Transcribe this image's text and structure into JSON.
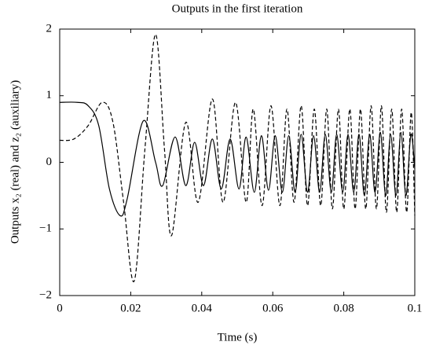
{
  "chart_data": {
    "type": "line",
    "title": "Outputs in the first iteration",
    "x_label": "Time (s)",
    "y_label": "Outputs x₂ (real) and z₂ (auxiliary)",
    "xlim": [
      0,
      0.1
    ],
    "xticks": [
      0,
      0.02,
      0.04,
      0.06,
      0.08,
      0.1
    ],
    "ylim": [
      -2,
      2
    ],
    "yticks": [
      {
        "value": -2,
        "label": "−2"
      },
      {
        "value": -1,
        "label": "−1"
      },
      0,
      1,
      2
    ],
    "series": [
      {
        "color": "#000000",
        "dash": "solid",
        "x": [
          0,
          0.005,
          0.008,
          0.011,
          0.014,
          0.017,
          0.019,
          0.0235,
          0.027,
          0.029,
          0.0325,
          0.0355,
          0.038,
          0.0405,
          0.043,
          0.0455,
          0.048,
          0.0505,
          0.0525,
          0.0548,
          0.0568,
          0.0588,
          0.0607,
          0.0627,
          0.0645,
          0.0663,
          0.068,
          0.0698,
          0.0715,
          0.0732,
          0.0748,
          0.0765,
          0.078,
          0.0797,
          0.0812,
          0.0828,
          0.0843,
          0.0858,
          0.0873,
          0.0888,
          0.0903,
          0.0918,
          0.0932,
          0.0947,
          0.0961,
          0.0975,
          0.0989,
          0.1
        ],
        "values": [
          0.9,
          0.9,
          0.85,
          0.55,
          -0.4,
          -0.8,
          -0.55,
          0.62,
          0.0,
          -0.35,
          0.38,
          -0.35,
          0.3,
          -0.35,
          0.35,
          -0.4,
          0.35,
          -0.4,
          0.38,
          -0.45,
          0.4,
          -0.42,
          0.4,
          -0.45,
          0.4,
          -0.45,
          0.42,
          -0.45,
          0.4,
          -0.45,
          0.42,
          -0.45,
          0.42,
          -0.45,
          0.42,
          -0.45,
          0.42,
          -0.5,
          0.42,
          -0.45,
          0.45,
          -0.5,
          0.42,
          -0.5,
          0.45,
          -0.5,
          0.42,
          -0.1
        ]
      },
      {
        "color": "#000000",
        "dash": "dashed",
        "x": [
          0,
          0.004,
          0.008,
          0.012,
          0.015,
          0.018,
          0.021,
          0.024,
          0.027,
          0.0295,
          0.0315,
          0.0355,
          0.039,
          0.043,
          0.046,
          0.0495,
          0.0525,
          0.0545,
          0.057,
          0.0595,
          0.062,
          0.064,
          0.066,
          0.068,
          0.0698,
          0.0717,
          0.0735,
          0.0752,
          0.0768,
          0.0785,
          0.08,
          0.0817,
          0.0832,
          0.0847,
          0.0862,
          0.0877,
          0.0892,
          0.0906,
          0.092,
          0.0935,
          0.0949,
          0.0963,
          0.0977,
          0.099,
          0.1
        ],
        "values": [
          0.33,
          0.35,
          0.55,
          0.9,
          0.6,
          -0.6,
          -1.78,
          0.2,
          1.92,
          0.2,
          -1.1,
          0.6,
          -0.6,
          0.95,
          -0.6,
          0.9,
          -0.6,
          0.8,
          -0.65,
          0.85,
          -0.65,
          0.8,
          -0.6,
          0.85,
          -0.65,
          0.8,
          -0.65,
          0.8,
          -0.7,
          0.8,
          -0.7,
          0.8,
          -0.7,
          0.8,
          -0.7,
          0.85,
          -0.7,
          0.85,
          -0.75,
          0.8,
          -0.75,
          0.8,
          -0.75,
          0.75,
          -0.8
        ]
      }
    ]
  }
}
